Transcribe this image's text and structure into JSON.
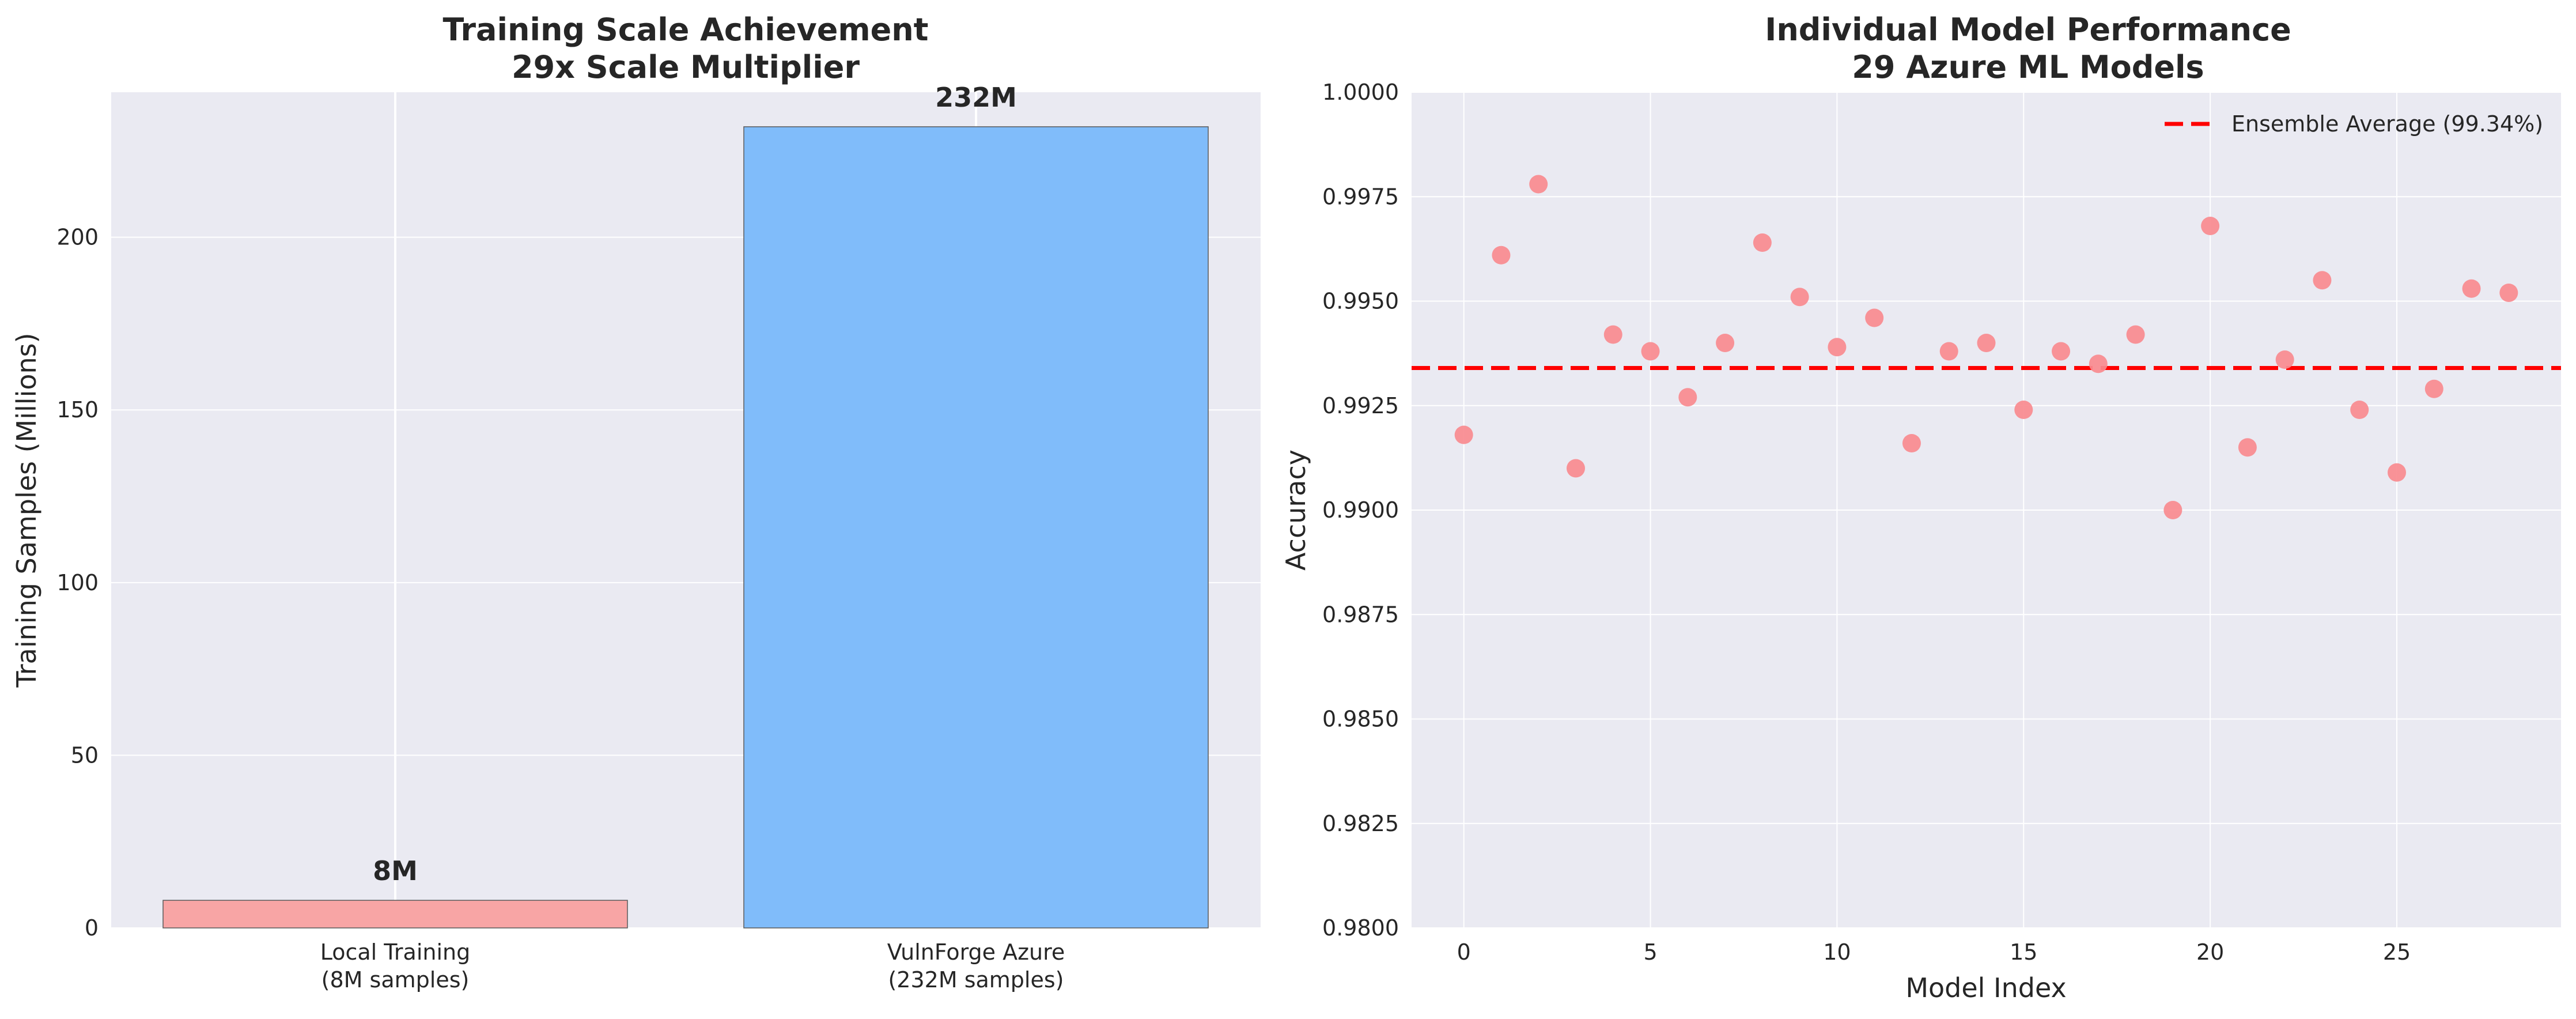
{
  "chart_data": [
    {
      "type": "bar",
      "title": "Training Scale Achievement",
      "subtitle": "29x Scale Multiplier",
      "xlabel": "",
      "ylabel": "Training Samples (Millions)",
      "ylim": [
        0,
        242
      ],
      "yticks": [
        "0",
        "50",
        "100",
        "150",
        "200"
      ],
      "categories": [
        "Local Training\n(8M samples)",
        "VulnForge Azure\n(232M samples)"
      ],
      "values": [
        8,
        232
      ],
      "data_labels": [
        "8M",
        "232M"
      ],
      "colors": [
        "#f8a5a5",
        "#80bcfa"
      ],
      "grid": true
    },
    {
      "type": "scatter",
      "title": "Individual Model Performance",
      "subtitle": "29 Azure ML Models",
      "xlabel": "Model Index",
      "ylabel": "Accuracy",
      "xlim": [
        -1.4,
        29.4
      ],
      "ylim": [
        0.98,
        1.0
      ],
      "xticks": [
        "0",
        "5",
        "10",
        "15",
        "20",
        "25"
      ],
      "yticks": [
        "0.9800",
        "0.9825",
        "0.9850",
        "0.9875",
        "0.9900",
        "0.9925",
        "0.9950",
        "0.9975",
        "1.0000"
      ],
      "x": [
        0,
        1,
        2,
        3,
        4,
        5,
        6,
        7,
        8,
        9,
        10,
        11,
        12,
        13,
        14,
        15,
        16,
        17,
        18,
        19,
        20,
        21,
        22,
        23,
        24,
        25,
        26,
        27,
        28
      ],
      "y": [
        0.9918,
        0.9961,
        0.9978,
        0.991,
        0.9942,
        0.9938,
        0.9927,
        0.994,
        0.9964,
        0.9951,
        0.9939,
        0.9946,
        0.9916,
        0.9938,
        0.994,
        0.9924,
        0.9938,
        0.9935,
        0.9942,
        0.99,
        0.9968,
        0.9915,
        0.9936,
        0.9955,
        0.9924,
        0.9909,
        0.9929,
        0.9953,
        0.9952
      ],
      "point_color": "#f88a8f",
      "reference_line": {
        "y": 0.9934,
        "color": "#ff0000",
        "style": "dashed"
      },
      "legend": {
        "placement": "top-right",
        "entries": [
          "Ensemble Average (99.34%)"
        ]
      },
      "grid": true
    }
  ]
}
